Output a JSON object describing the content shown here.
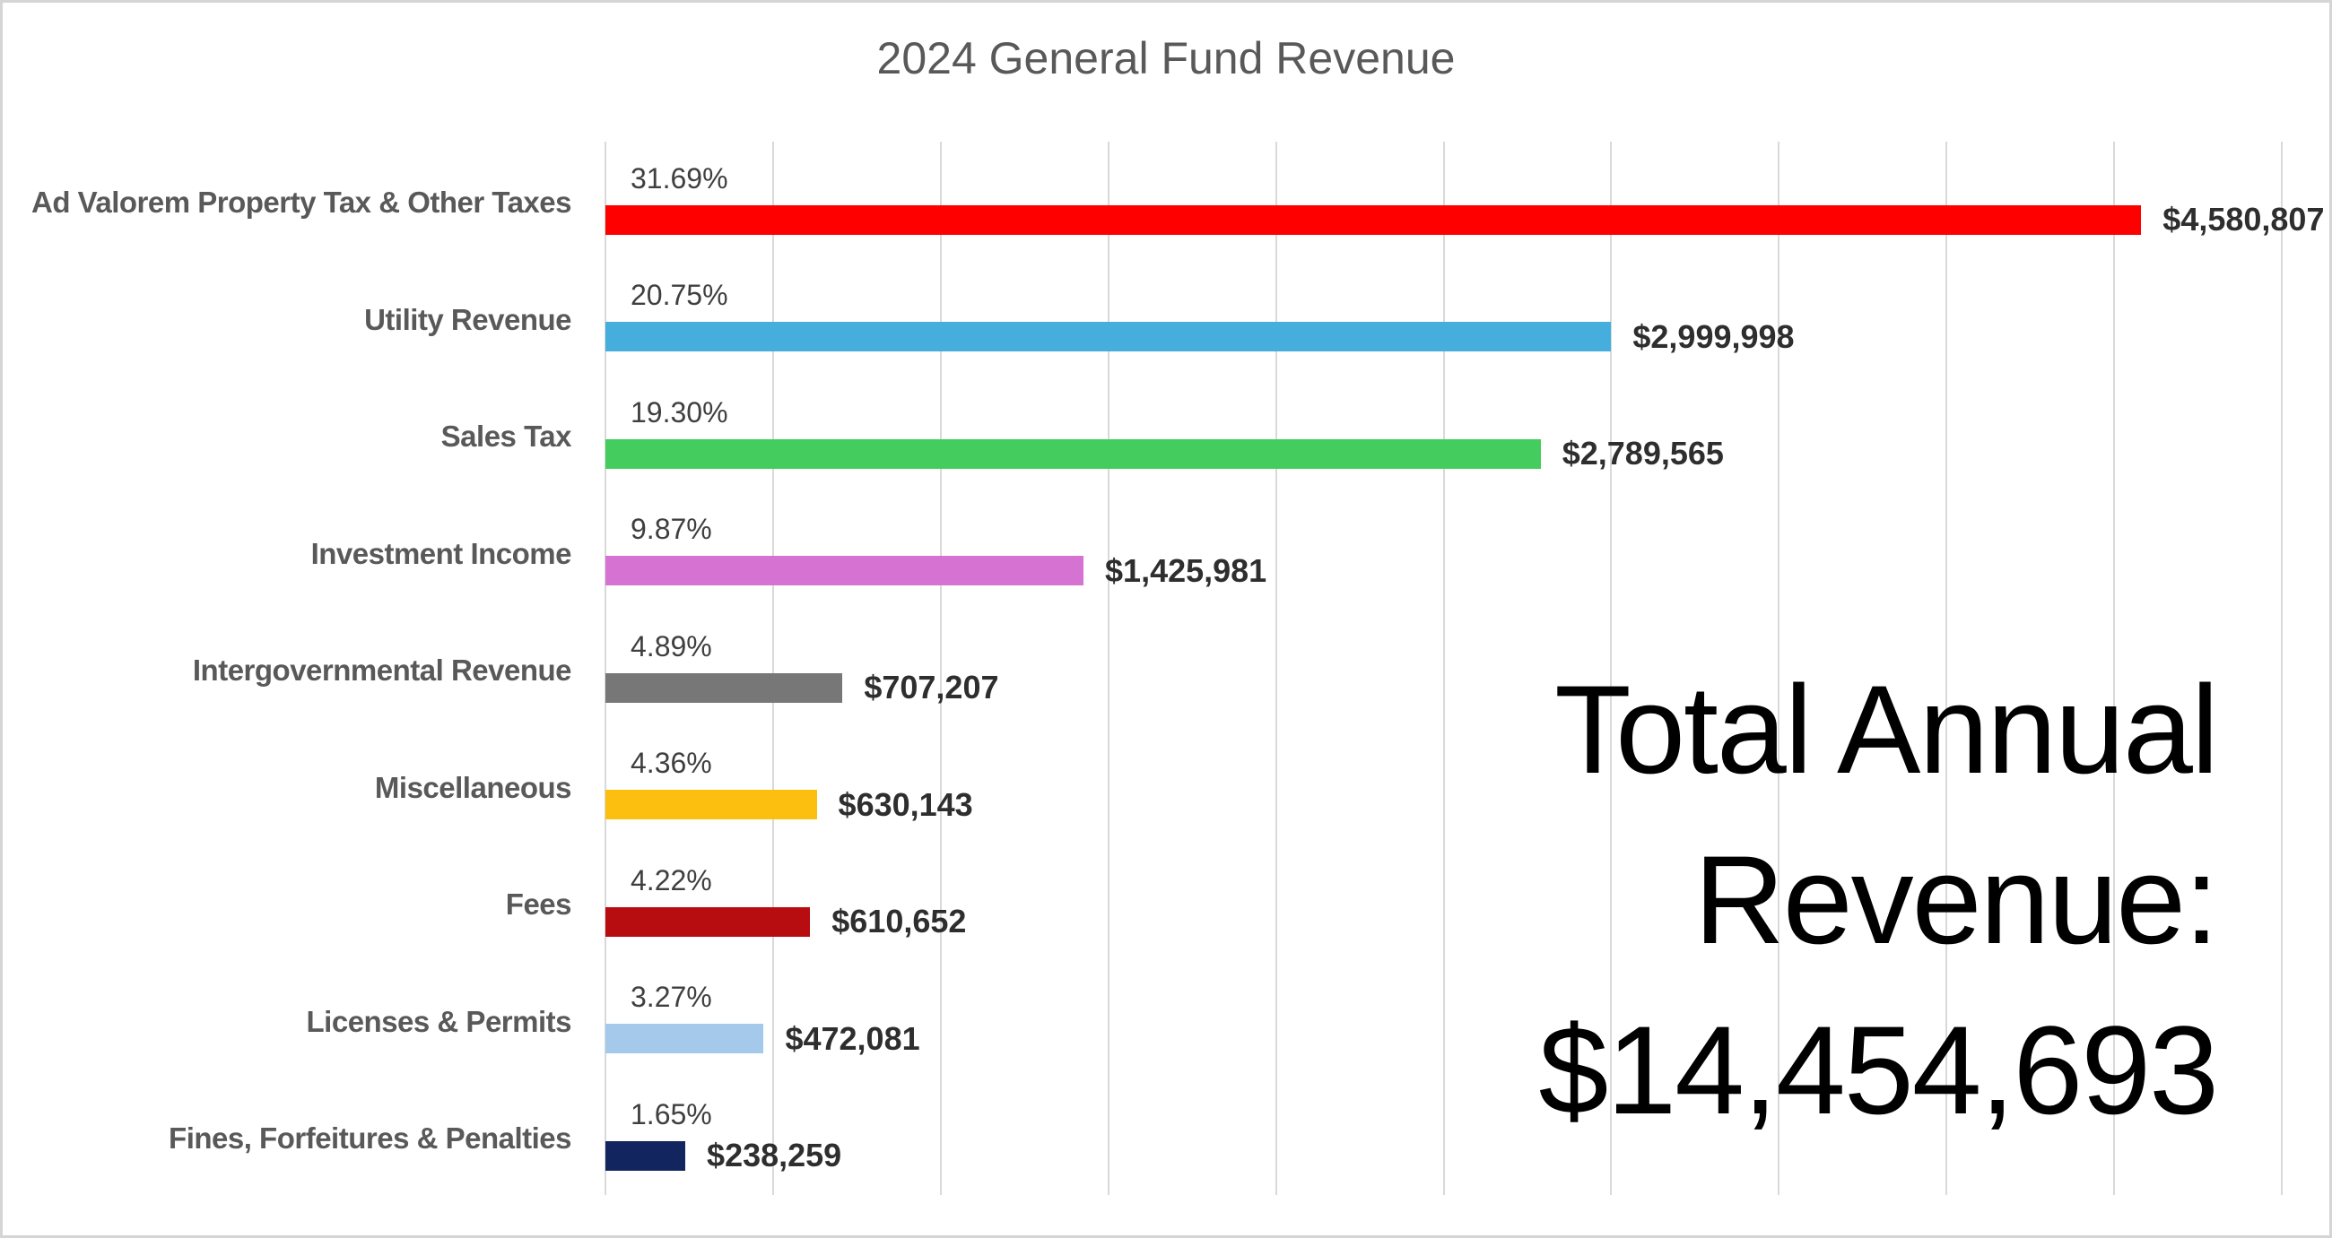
{
  "title": "2024 General Fund Revenue",
  "total_text": {
    "lines": [
      "Total Annual",
      "Revenue:",
      "$14,454,693"
    ]
  },
  "colors": {
    "gridline": "#D9D9D9",
    "card_border": "#D5D5D5",
    "title_text": "#595959",
    "category_text": "#595959",
    "percent_text": "#3F3F3F",
    "value_text": "#2E2E2E",
    "total_text": "#000000"
  },
  "chart_data": {
    "type": "bar",
    "orientation": "horizontal",
    "title": "2024 General Fund Revenue",
    "xlabel": "",
    "ylabel": "",
    "xlim": [
      0,
      5000000
    ],
    "gridline_step": 500000,
    "grid": "vertical-only",
    "legend": "none",
    "total_annual_revenue": 14454693,
    "total_annual_revenue_label": "$14,454,693",
    "categories": [
      "Ad Valorem Property Tax & Other Taxes",
      "Utility Revenue",
      "Sales Tax",
      "Investment Income",
      "Intergovernmental Revenue",
      "Miscellaneous",
      "Fees",
      "Licenses & Permits",
      "Fines, Forfeitures & Penalties"
    ],
    "rows": [
      {
        "category": "Ad Valorem Property Tax & Other Taxes",
        "percent": 31.69,
        "percent_label": "31.69%",
        "amount": 4580807,
        "value_label": "$4,580,807",
        "color": "#FF0000"
      },
      {
        "category": "Utility Revenue",
        "percent": 20.75,
        "percent_label": "20.75%",
        "amount": 2999998,
        "value_label": "$2,999,998",
        "color": "#45AEDC"
      },
      {
        "category": "Sales Tax",
        "percent": 19.3,
        "percent_label": "19.30%",
        "amount": 2789565,
        "value_label": "$2,789,565",
        "color": "#45CC5E"
      },
      {
        "category": "Investment Income",
        "percent": 9.87,
        "percent_label": "9.87%",
        "amount": 1425981,
        "value_label": "$1,425,981",
        "color": "#D572D2"
      },
      {
        "category": "Intergovernmental Revenue",
        "percent": 4.89,
        "percent_label": "4.89%",
        "amount": 707207,
        "value_label": "$707,207",
        "color": "#777777"
      },
      {
        "category": "Miscellaneous",
        "percent": 4.36,
        "percent_label": "4.36%",
        "amount": 630143,
        "value_label": "$630,143",
        "color": "#FCBF10"
      },
      {
        "category": "Fees",
        "percent": 4.22,
        "percent_label": "4.22%",
        "amount": 610652,
        "value_label": "$610,652",
        "color": "#B80D10"
      },
      {
        "category": "Licenses & Permits",
        "percent": 3.27,
        "percent_label": "3.27%",
        "amount": 472081,
        "value_label": "$472,081",
        "color": "#A4C9EA"
      },
      {
        "category": "Fines, Forfeitures & Penalties",
        "percent": 1.65,
        "percent_label": "1.65%",
        "amount": 238259,
        "value_label": "$238,259",
        "color": "#13255E"
      }
    ]
  }
}
